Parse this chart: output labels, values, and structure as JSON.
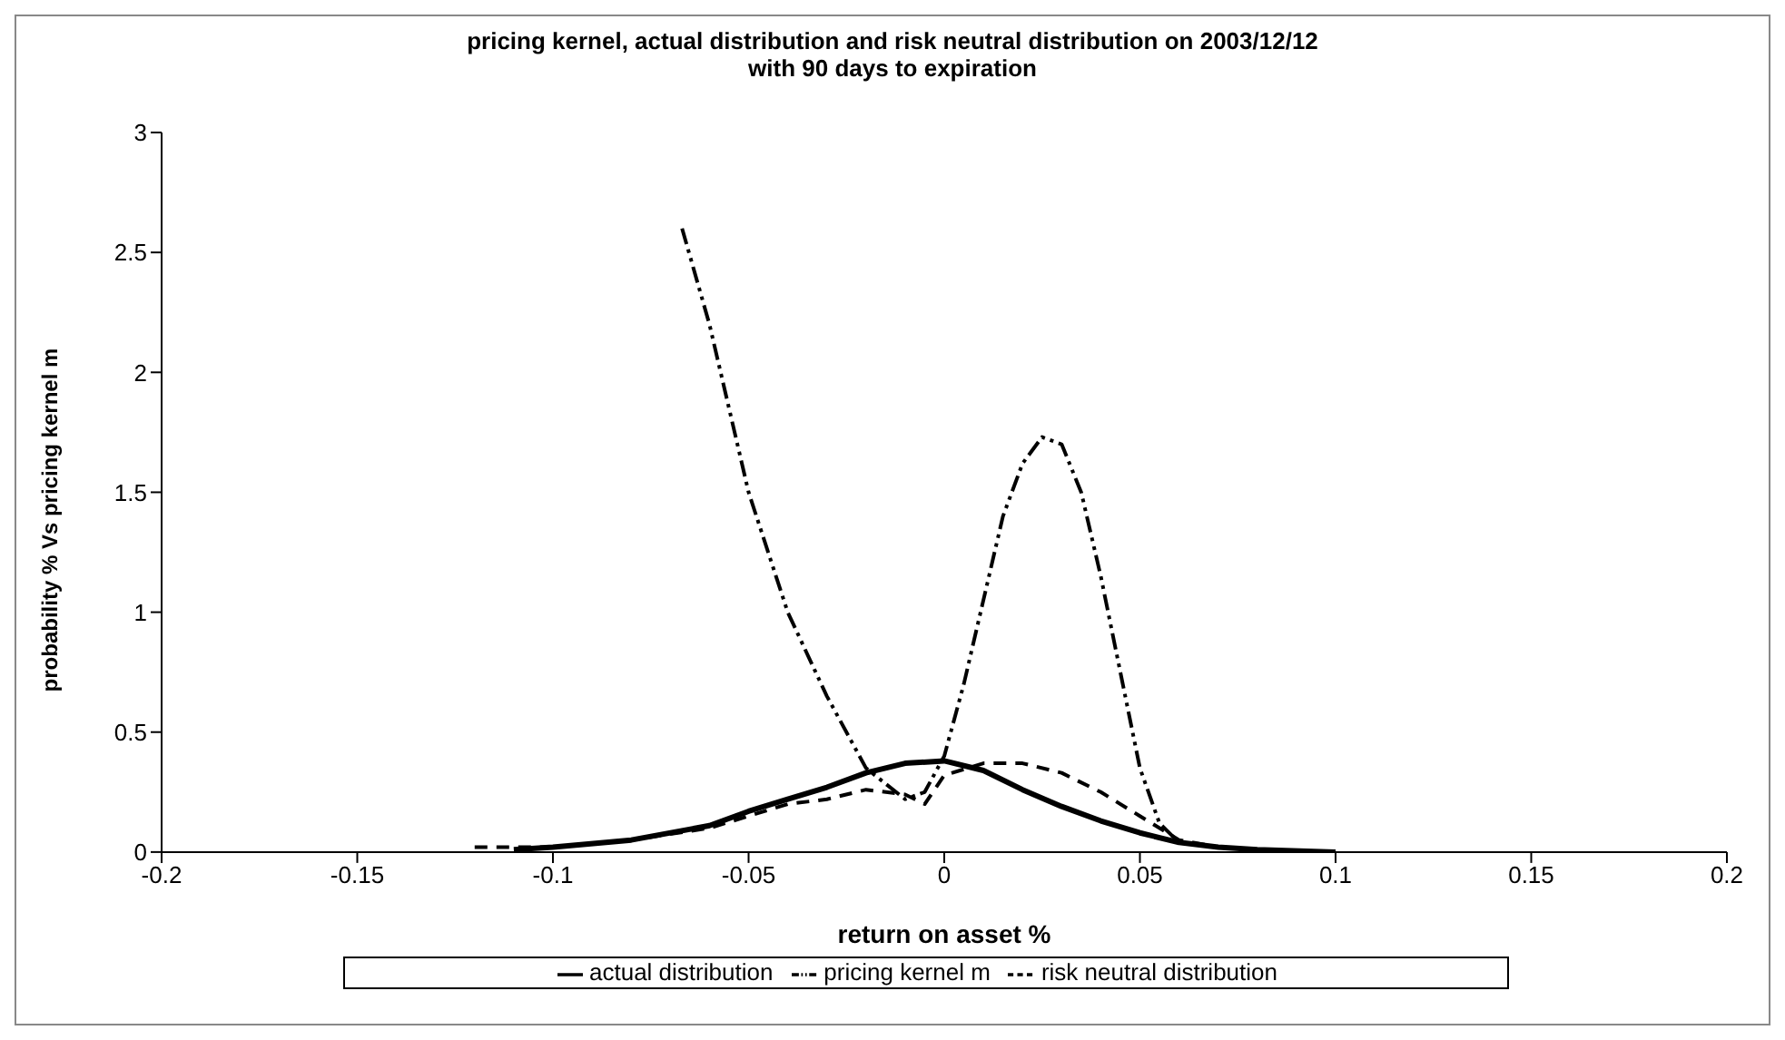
{
  "chart_data": {
    "type": "line",
    "title": "pricing kernel, actual distribution and risk neutral distribution on 2003/12/12\nwith 90 days to expiration",
    "xlabel": "return on asset %",
    "ylabel": "probability % Vs pricing kernel m",
    "xlim": [
      -0.2,
      0.2
    ],
    "xticks": [
      -0.2,
      -0.15,
      -0.1,
      -0.05,
      0,
      0.05,
      0.1,
      0.15,
      0.2
    ],
    "ylim": [
      0,
      3
    ],
    "yticks": [
      0,
      0.5,
      1,
      1.5,
      2,
      2.5,
      3
    ],
    "grid": false,
    "legend": "bottom",
    "marker": "none",
    "series": [
      {
        "name": "actual distribution",
        "color": "#000000",
        "line_style": "solid",
        "x": [
          -0.11,
          -0.1,
          -0.08,
          -0.06,
          -0.05,
          -0.04,
          -0.03,
          -0.02,
          -0.01,
          0,
          0.01,
          0.02,
          0.03,
          0.04,
          0.05,
          0.06,
          0.07,
          0.08,
          0.1
        ],
        "values": [
          0.01,
          0.02,
          0.05,
          0.11,
          0.17,
          0.22,
          0.27,
          0.33,
          0.37,
          0.38,
          0.34,
          0.26,
          0.19,
          0.13,
          0.08,
          0.04,
          0.02,
          0.01,
          0
        ]
      },
      {
        "name": "risk neutral distribution",
        "color": "#000000",
        "line_style": "dashed",
        "x": [
          -0.12,
          -0.1,
          -0.08,
          -0.06,
          -0.05,
          -0.04,
          -0.03,
          -0.02,
          -0.01,
          -0.005,
          0,
          0.01,
          0.02,
          0.03,
          0.04,
          0.05,
          0.06,
          0.07
        ],
        "values": [
          0.02,
          0.02,
          0.05,
          0.1,
          0.15,
          0.2,
          0.22,
          0.26,
          0.24,
          0.2,
          0.32,
          0.37,
          0.37,
          0.33,
          0.25,
          0.15,
          0.05,
          0.02
        ]
      },
      {
        "name": "pricing kernel m",
        "color": "#000000",
        "line_style": "dotted",
        "x": [
          -0.067,
          -0.06,
          -0.05,
          -0.04,
          -0.03,
          -0.02,
          -0.01,
          -0.005,
          0,
          0.005,
          0.01,
          0.015,
          0.02,
          0.025,
          0.03,
          0.035,
          0.04,
          0.045,
          0.05,
          0.055,
          0.06,
          0.07
        ],
        "values": [
          2.6,
          2.2,
          1.5,
          1.0,
          0.65,
          0.35,
          0.22,
          0.25,
          0.4,
          0.7,
          1.05,
          1.4,
          1.62,
          1.73,
          1.7,
          1.5,
          1.15,
          0.75,
          0.35,
          0.12,
          0.04,
          0.02
        ]
      }
    ]
  }
}
